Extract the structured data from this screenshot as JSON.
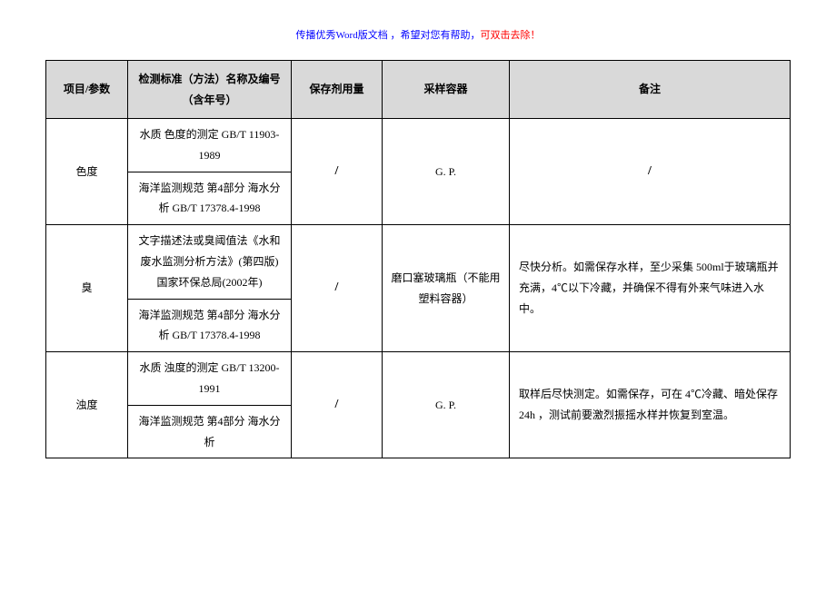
{
  "header": {
    "bluePart": "传播优秀Word版文档 ，希望对您有帮助，",
    "redPart": "可双击去除！"
  },
  "table": {
    "headers": {
      "param": "项目/参数",
      "standard": "检测标准（方法）名称及编号（含年号）",
      "preservative": "保存剂用量",
      "container": "采样容器",
      "remark": "备注"
    },
    "rows": {
      "r1": {
        "param": "色度",
        "std1": "水质 色度的测定 GB/T 11903-1989",
        "std2": "海洋监测规范 第4部分 海水分析 GB/T 17378.4-1998",
        "preservative": "/",
        "container": "G. P.",
        "remark": "/"
      },
      "r2": {
        "param": "臭",
        "std1": "文字描述法或臭阈值法《水和废水监测分析方法》(第四版)国家环保总局(2002年)",
        "std2": "海洋监测规范 第4部分 海水分析 GB/T 17378.4-1998",
        "preservative": "/",
        "container": "磨口塞玻璃瓶（不能用塑料容器）",
        "remark": "尽快分析。如需保存水样，至少采集 500ml于玻璃瓶并充满，4℃以下冷藏，并确保不得有外来气味进入水中。"
      },
      "r3": {
        "param": "浊度",
        "std1": "水质 浊度的测定 GB/T 13200-1991",
        "std2": "海洋监测规范 第4部分 海水分析",
        "preservative": "/",
        "container": "G. P.",
        "remark": "取样后尽快测定。如需保存，可在 4℃冷藏、暗处保存 24h ，测试前要激烈振摇水样并恢复到室温。"
      }
    }
  }
}
